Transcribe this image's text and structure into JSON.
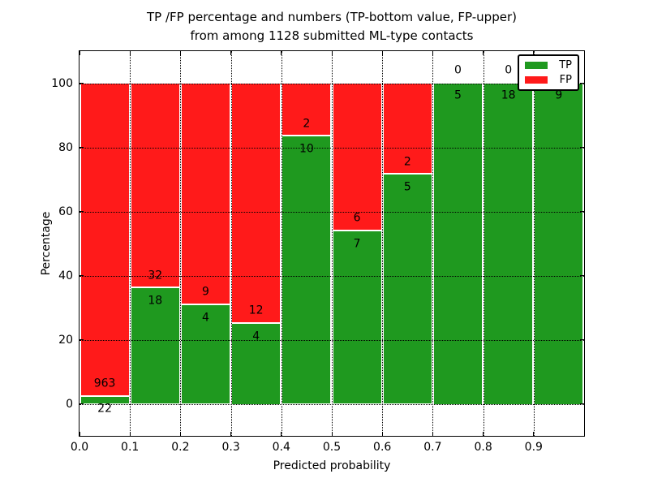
{
  "chart_data": {
    "type": "bar",
    "stacked": true,
    "title_line1": "TP /FP percentage and numbers (TP-bottom value, FP-upper)",
    "title_line2": "from among 1128 submitted ML-type contacts",
    "xlabel": "Predicted probability",
    "ylabel": "Percentage",
    "total_contacts": 1128,
    "xlim": [
      0.0,
      1.0
    ],
    "ylim": [
      -10,
      110
    ],
    "x_tick_labels": [
      "0.0",
      "0.1",
      "0.2",
      "0.3",
      "0.4",
      "0.5",
      "0.6",
      "0.7",
      "0.8",
      "0.9"
    ],
    "y_tick_values": [
      0,
      20,
      40,
      60,
      80,
      100
    ],
    "y_tick_labels": [
      "0",
      "20",
      "40",
      "60",
      "80",
      "100"
    ],
    "grid": "dotted, drawn over bars",
    "bar_label_note": "FP count printed above TP/FP boundary, TP count below it",
    "legend": {
      "position": "upper-right",
      "entries": [
        {
          "label": "TP",
          "color": "#1f991f"
        },
        {
          "label": "FP",
          "color": "#ff1a1a"
        }
      ]
    },
    "bins": [
      {
        "x_start": 0.0,
        "x_end": 0.1,
        "tp": 22,
        "fp": 963
      },
      {
        "x_start": 0.1,
        "x_end": 0.2,
        "tp": 18,
        "fp": 32
      },
      {
        "x_start": 0.2,
        "x_end": 0.3,
        "tp": 4,
        "fp": 9
      },
      {
        "x_start": 0.3,
        "x_end": 0.4,
        "tp": 4,
        "fp": 12
      },
      {
        "x_start": 0.4,
        "x_end": 0.5,
        "tp": 10,
        "fp": 2
      },
      {
        "x_start": 0.5,
        "x_end": 0.6,
        "tp": 7,
        "fp": 6
      },
      {
        "x_start": 0.6,
        "x_end": 0.7,
        "tp": 5,
        "fp": 2
      },
      {
        "x_start": 0.7,
        "x_end": 0.8,
        "tp": 5,
        "fp": 0
      },
      {
        "x_start": 0.8,
        "x_end": 0.9,
        "tp": 18,
        "fp": 0
      },
      {
        "x_start": 0.9,
        "x_end": 1.0,
        "tp": 9,
        "fp": 0
      }
    ]
  }
}
